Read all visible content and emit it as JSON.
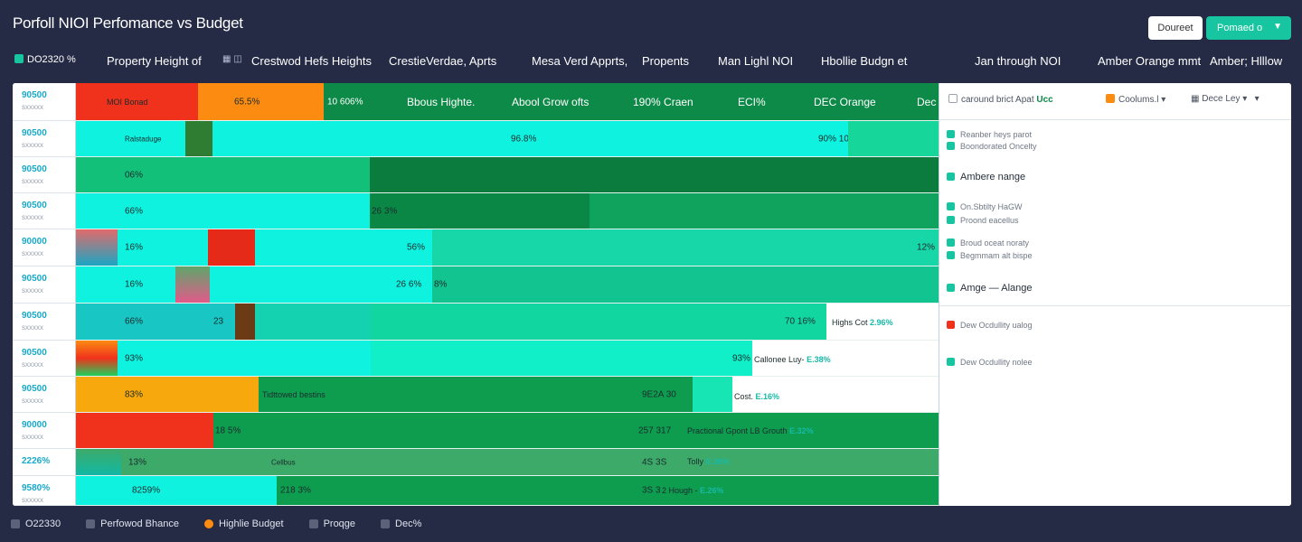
{
  "header": {
    "title": "Porfoll NIOI Perfomance vs Budget",
    "btn_light": "Doureet",
    "btn_green": "Pomaed o"
  },
  "columns": [
    "Property Height of",
    "Crestwod Hefs Heights",
    "CrestieVerdae, Aprts",
    "Mesa Verd Apprts,",
    "Propents",
    "Man Lighl NOI",
    "Hbollie Budgn et",
    "Jan through NOI",
    "Amber Orange mmt",
    "Amber; Hlllow"
  ],
  "column_prefix": "DO2320 %",
  "rows": [
    {
      "a": "90500",
      "b": "sxxxxx"
    },
    {
      "a": "90500",
      "b": "sxxxxx"
    },
    {
      "a": "90500",
      "b": "sxxxxx"
    },
    {
      "a": "90500",
      "b": "sxxxxx"
    },
    {
      "a": "90000",
      "b": "sxxxxx"
    },
    {
      "a": "90500",
      "b": "sxxxxx"
    },
    {
      "a": "90500",
      "b": "sxxxxx"
    },
    {
      "a": "90500",
      "b": "sxxxxx"
    },
    {
      "a": "90500",
      "b": "sxxxxx"
    },
    {
      "a": "90000",
      "b": "sxxxxx"
    },
    {
      "a": "2226%",
      "b": ""
    },
    {
      "a": "9580%",
      "b": "sxxxxx"
    }
  ],
  "grid_header": {
    "c1": "MOI Bonad",
    "c2": "65.5%",
    "c3": "10 606%",
    "c4": "Bbous Highte.",
    "c5": "Abool Grow ofts",
    "c6": "190% Craen",
    "c7": "ECI%",
    "c8": "DEC Orange",
    "c9": "Dec"
  },
  "row_text": {
    "r1": [
      "Ralstaduge",
      "96.8%",
      "90% 10%"
    ],
    "r2": [
      "06%"
    ],
    "r3": [
      "66%",
      "26 3%"
    ],
    "r4": [
      "16%",
      "56%",
      "12%"
    ],
    "r5": [
      "16%",
      "26 6%",
      "8%"
    ],
    "r6": [
      "66%",
      "23",
      "70 16%"
    ],
    "r7": [
      "93%",
      "93%"
    ],
    "r8": [
      "83%",
      "Tidttowed bestins",
      "9E2A 30"
    ],
    "r9": [
      "",
      "18 5%",
      "257 317"
    ],
    "r10": [
      "13%",
      "Cellbus",
      "4S 3S"
    ],
    "r11": [
      "8259%",
      "218 3%",
      "3S 3S"
    ]
  },
  "annotations": [
    {
      "label": "Highs Cot",
      "pct": "2.96%"
    },
    {
      "label": "Callonee Luy-",
      "pct": "E.38%"
    },
    {
      "label": "Cost.",
      "pct": "E.16%"
    },
    {
      "label": "Practional Gpont LB Grouth",
      "pct": "E.32%"
    },
    {
      "label": "Tolly",
      "pct": "E.36%"
    },
    {
      "label": "2 Hough -",
      "pct": "E.26%"
    }
  ],
  "side": {
    "h1": "caround brict Apat",
    "h1b": "Ucc",
    "h2": "Coolums.l",
    "h3": "Dece Ley",
    "items": [
      "Reanber heys parot",
      "Boondorated Oncelty",
      "Ambere nange",
      "On.Sbtilty HaGW",
      "Proond eacellus",
      "Broud oceat noraty",
      "Begmmam alt bispe",
      "Amge — Alange",
      "Dew Ocdullity ualog",
      "Dew Ocdullity nolee"
    ]
  },
  "legend": [
    "O22330",
    "Perfowod Bhance",
    "Highlie Budget",
    "Proqge",
    "Dec%"
  ],
  "colors": {
    "bg": "#252b45",
    "green": "#17c6a0",
    "cyan": "#0ff2e0",
    "dkgreen": "#0d8a48",
    "red": "#f0321c",
    "orange": "#fb8b11"
  }
}
